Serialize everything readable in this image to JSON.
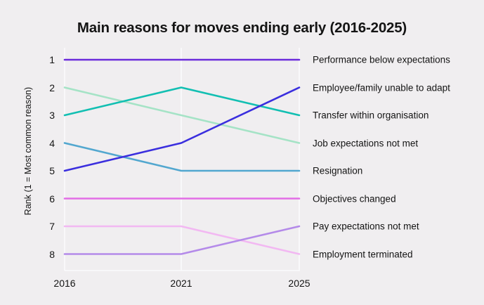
{
  "title": "Main reasons for moves ending early (2016-2025)",
  "colors": {
    "background": "#f0eef0",
    "gridline": "#fbfafc",
    "text": "#141414"
  },
  "chart_data": {
    "type": "line",
    "subtype": "bump-rank-chart",
    "title": "Main reasons for moves ending early (2016-2025)",
    "categories": [
      "2016",
      "2021",
      "2025"
    ],
    "xlabel": "",
    "ylabel": "Rank (1 = Most common reason)",
    "yticks": [
      1,
      2,
      3,
      4,
      5,
      6,
      7,
      8
    ],
    "ylim": [
      1,
      8
    ],
    "y_inverted": true,
    "grid": "vertical-only",
    "legend_position": "right-end-labels",
    "series": [
      {
        "name": "Performance below expectations",
        "values": [
          1,
          1,
          1
        ],
        "color": "#6b2bdb"
      },
      {
        "name": "Employee/family unable to adapt",
        "values": [
          5,
          4,
          2
        ],
        "color": "#3a2ede"
      },
      {
        "name": "Transfer within organisation",
        "values": [
          3,
          2,
          3
        ],
        "color": "#12bfb2"
      },
      {
        "name": "Job expectations not met",
        "values": [
          2,
          3,
          4
        ],
        "color": "#a5e3c6"
      },
      {
        "name": "Resignation",
        "values": [
          4,
          5,
          5
        ],
        "color": "#52a7cf"
      },
      {
        "name": "Objectives changed",
        "values": [
          6,
          6,
          6
        ],
        "color": "#e26de6"
      },
      {
        "name": "Pay expectations not met",
        "values": [
          8,
          8,
          7
        ],
        "color": "#b48ae9"
      },
      {
        "name": "Employment terminated",
        "values": [
          7,
          7,
          8
        ],
        "color": "#f2b8f2"
      }
    ]
  }
}
